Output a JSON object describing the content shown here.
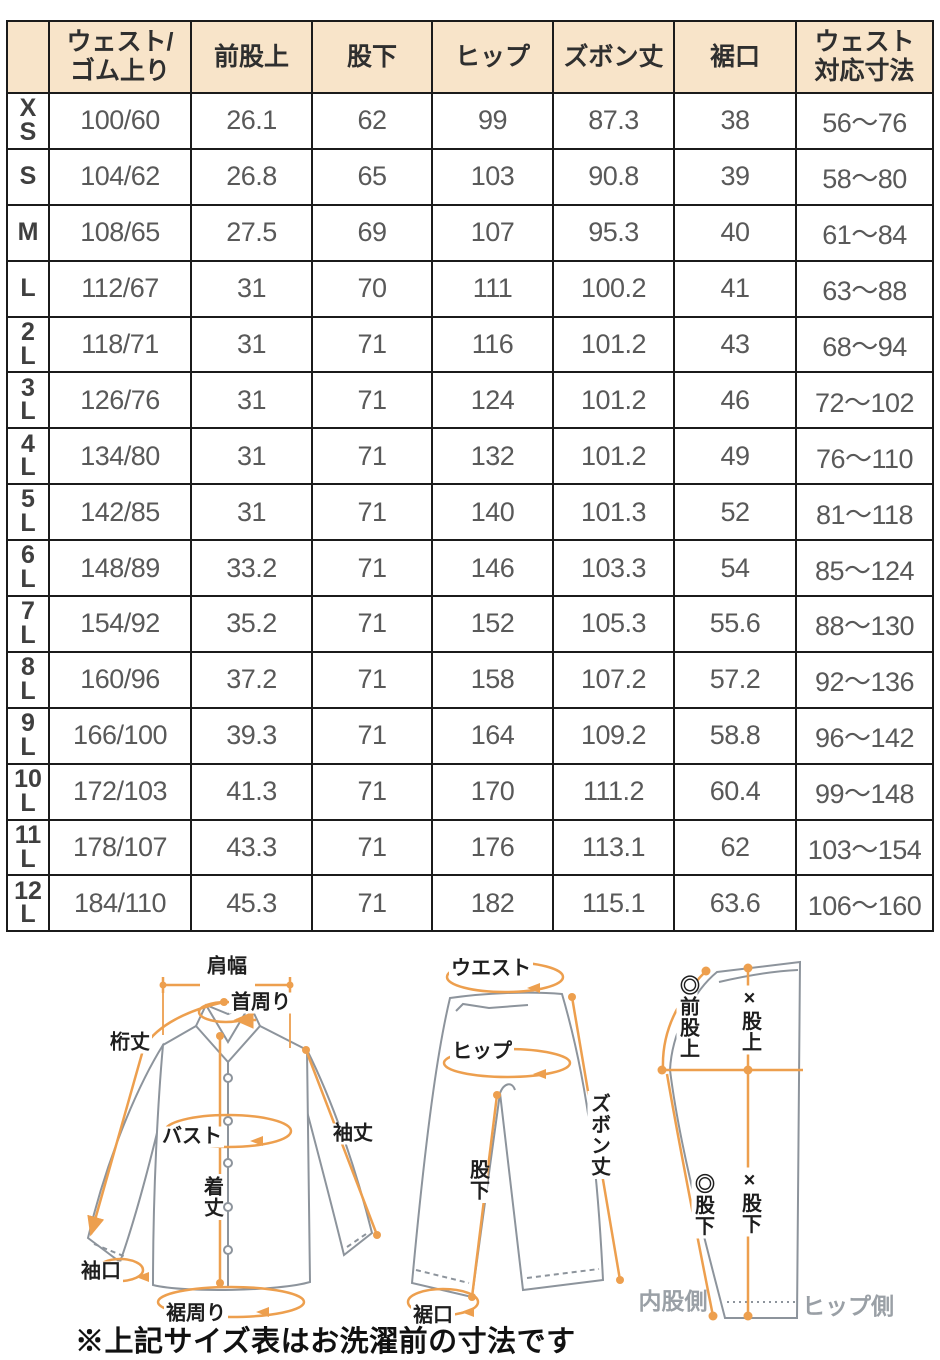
{
  "colors": {
    "accent": "#ED9F4E",
    "header-bg": "#F8E4C9",
    "border": "#1b1b1b",
    "cell-text": "#595959",
    "label-text": "#2f2f2f",
    "outline-gray": "#8d949c",
    "side-label-gray": "#9aa0a6"
  },
  "table": {
    "corner_label": "",
    "columns": [
      "ウェスト/\nゴム上り",
      "前股上",
      "股下",
      "ヒップ",
      "ズボン丈",
      "裾口",
      "ウェスト\n対応寸法"
    ],
    "rows": [
      {
        "size": "X\nS",
        "values": [
          "100/60",
          "26.1",
          "62",
          "99",
          "87.3",
          "38",
          "56〜76"
        ]
      },
      {
        "size": "S",
        "values": [
          "104/62",
          "26.8",
          "65",
          "103",
          "90.8",
          "39",
          "58〜80"
        ]
      },
      {
        "size": "M",
        "values": [
          "108/65",
          "27.5",
          "69",
          "107",
          "95.3",
          "40",
          "61〜84"
        ]
      },
      {
        "size": "L",
        "values": [
          "112/67",
          "31",
          "70",
          "111",
          "100.2",
          "41",
          "63〜88"
        ]
      },
      {
        "size": "2\nL",
        "values": [
          "118/71",
          "31",
          "71",
          "116",
          "101.2",
          "43",
          "68〜94"
        ]
      },
      {
        "size": "3\nL",
        "values": [
          "126/76",
          "31",
          "71",
          "124",
          "101.2",
          "46",
          "72〜102"
        ]
      },
      {
        "size": "4\nL",
        "values": [
          "134/80",
          "31",
          "71",
          "132",
          "101.2",
          "49",
          "76〜110"
        ]
      },
      {
        "size": "5\nL",
        "values": [
          "142/85",
          "31",
          "71",
          "140",
          "101.3",
          "52",
          "81〜118"
        ]
      },
      {
        "size": "6\nL",
        "values": [
          "148/89",
          "33.2",
          "71",
          "146",
          "103.3",
          "54",
          "85〜124"
        ]
      },
      {
        "size": "7\nL",
        "values": [
          "154/92",
          "35.2",
          "71",
          "152",
          "105.3",
          "55.6",
          "88〜130"
        ]
      },
      {
        "size": "8\nL",
        "values": [
          "160/96",
          "37.2",
          "71",
          "158",
          "107.2",
          "57.2",
          "92〜136"
        ]
      },
      {
        "size": "9\nL",
        "values": [
          "166/100",
          "39.3",
          "71",
          "164",
          "109.2",
          "58.8",
          "96〜142"
        ]
      },
      {
        "size": "10\nL",
        "values": [
          "172/103",
          "41.3",
          "71",
          "170",
          "111.2",
          "60.4",
          "99〜148"
        ]
      },
      {
        "size": "11\nL",
        "values": [
          "178/107",
          "43.3",
          "71",
          "176",
          "113.1",
          "62",
          "103〜154"
        ]
      },
      {
        "size": "12\nL",
        "values": [
          "184/110",
          "45.3",
          "71",
          "182",
          "115.1",
          "63.6",
          "106〜160"
        ]
      }
    ]
  },
  "diagram": {
    "shirt": {
      "shoulder": "肩幅",
      "neck": "首周り",
      "yuki": "桁丈",
      "bust": "バスト",
      "length": "着丈",
      "sleeve": "袖丈",
      "cuff": "袖口",
      "hem": "裾周り"
    },
    "pants": {
      "waist": "ウエスト",
      "hip": "ヒップ",
      "length": "ズボン丈",
      "inseam": "股下",
      "hem": "裾口"
    },
    "side": {
      "front_rise": "◎前股上",
      "rise": "×股上",
      "inseam_a": "◎股下",
      "inseam_b": "×股下",
      "inner": "内股側",
      "hip_side": "ヒップ側"
    }
  },
  "note": "※上記サイズ表はお洗濯前の寸法です"
}
